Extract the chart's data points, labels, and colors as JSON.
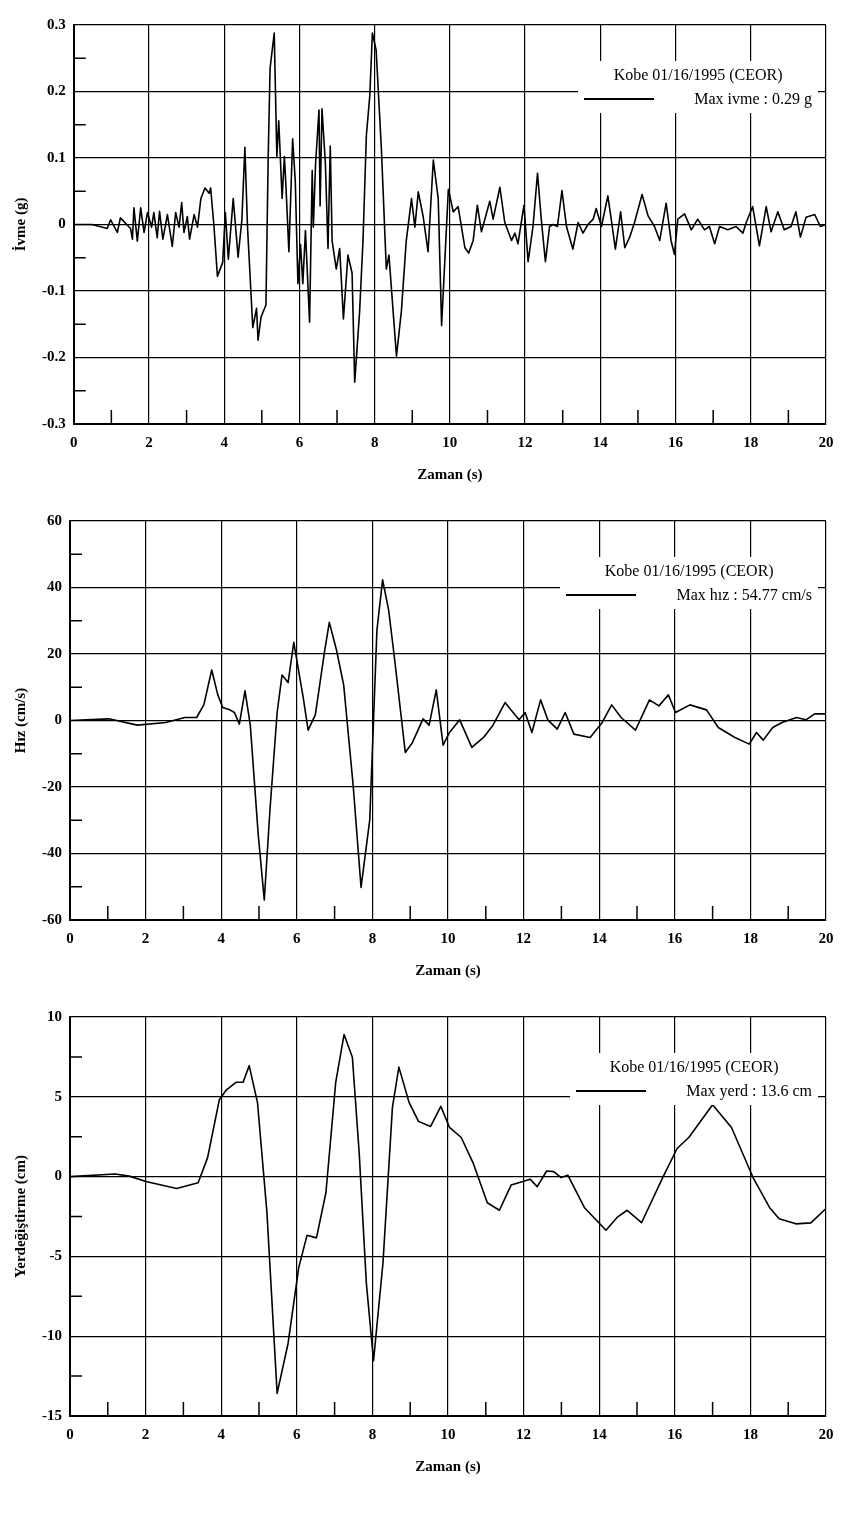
{
  "chart_data": [
    {
      "type": "line",
      "xlabel": "Zaman (s)",
      "ylabel": "İvme (g)",
      "legend_title": "Kobe 01/16/1995 (CEOR)",
      "legend": "top right",
      "grid": true,
      "xlim": [
        0,
        20
      ],
      "ylim": [
        -0.3,
        0.3
      ],
      "xticks": [
        0,
        {
          "value": 1,
          "label": null
        },
        2,
        {
          "value": 3,
          "label": null
        },
        4,
        {
          "value": 5,
          "label": null
        },
        6,
        {
          "value": 7,
          "label": null
        },
        8,
        {
          "value": 9,
          "label": null
        },
        10,
        {
          "value": 11,
          "label": null
        },
        12,
        {
          "value": 13,
          "label": null
        },
        14,
        {
          "value": 15,
          "label": null
        },
        16,
        {
          "value": 17,
          "label": null
        },
        18,
        {
          "value": 19,
          "label": null
        },
        20
      ],
      "yticks": [
        -0.3,
        {
          "value": -0.25,
          "label": null
        },
        -0.2,
        {
          "value": -0.15,
          "label": null
        },
        -0.1,
        {
          "value": -0.05,
          "label": null
        },
        0,
        {
          "value": 0.05,
          "label": null
        },
        0.1,
        {
          "value": 0.15,
          "label": null
        },
        0.2,
        {
          "value": 0.25,
          "label": null
        },
        0.3
      ],
      "x": [
        0,
        0.49,
        0.89,
        0.98,
        1.16,
        1.24,
        1.51,
        1.56,
        1.6,
        1.69,
        1.78,
        1.87,
        1.96,
        2.07,
        2.13,
        2.22,
        2.28,
        2.37,
        2.49,
        2.62,
        2.71,
        2.8,
        2.87,
        2.93,
        3.02,
        3.08,
        3.2,
        3.29,
        3.38,
        3.49,
        3.6,
        3.64,
        3.73,
        3.82,
        3.96,
        4.03,
        4.11,
        4.24,
        4.37,
        4.47,
        4.55,
        4.62,
        4.76,
        4.86,
        4.9,
        4.98,
        5.11,
        5.17,
        5.22,
        5.33,
        5.4,
        5.45,
        5.54,
        5.6,
        5.64,
        5.72,
        5.82,
        5.89,
        5.96,
        6.03,
        6.09,
        6.16,
        6.27,
        6.34,
        6.37,
        6.43,
        6.52,
        6.55,
        6.6,
        6.69,
        6.76,
        6.82,
        6.87,
        6.98,
        7.07,
        7.17,
        7.29,
        7.4,
        7.47,
        7.6,
        7.69,
        7.78,
        7.87,
        7.94,
        8.04,
        8.18,
        8.31,
        8.38,
        8.58,
        8.71,
        8.84,
        8.98,
        9.07,
        9.16,
        9.29,
        9.42,
        9.56,
        9.69,
        9.78,
        9.96,
        10.09,
        10.22,
        10.4,
        10.5,
        10.62,
        10.73,
        10.84,
        11.06,
        11.15,
        11.33,
        11.46,
        11.64,
        11.73,
        11.81,
        11.97,
        12.08,
        12.21,
        12.33,
        12.43,
        12.54,
        12.65,
        12.74,
        12.86,
        12.98,
        13.1,
        13.27,
        13.41,
        13.54,
        13.67,
        13.81,
        13.89,
        14.03,
        14.2,
        14.29,
        14.4,
        14.54,
        14.65,
        14.78,
        14.91,
        15.11,
        15.27,
        15.44,
        15.58,
        15.75,
        15.88,
        15.97,
        16.06,
        16.24,
        16.42,
        16.59,
        16.77,
        16.9,
        17.04,
        17.17,
        17.39,
        17.61,
        17.79,
        17.88,
        18.05,
        18.23,
        18.41,
        18.54,
        18.72,
        18.89,
        19.07,
        19.2,
        19.32,
        19.47,
        19.7,
        19.85,
        20
      ],
      "series": [
        {
          "name": "Max ivme : 0.29 g",
          "color": "#000000",
          "values": [
            0,
            0,
            -0.006,
            0.007,
            -0.012,
            0.01,
            -0.006,
            -0.022,
            0.025,
            -0.025,
            0.025,
            -0.012,
            0.018,
            -0.004,
            0.018,
            -0.02,
            0.02,
            -0.022,
            0.015,
            -0.033,
            0.018,
            -0.004,
            0.033,
            -0.012,
            0.012,
            -0.022,
            0.015,
            -0.004,
            0.039,
            0.055,
            0.047,
            0.055,
            -0.004,
            -0.078,
            -0.057,
            0.018,
            -0.052,
            0.039,
            -0.049,
            0.007,
            0.116,
            -0.004,
            -0.155,
            -0.126,
            -0.174,
            -0.139,
            -0.121,
            0.102,
            0.235,
            0.288,
            0.102,
            0.156,
            0.039,
            0.102,
            0.06,
            -0.041,
            0.129,
            0.065,
            -0.089,
            -0.03,
            -0.089,
            -0.009,
            -0.147,
            0.081,
            -0.004,
            0.092,
            0.172,
            0.028,
            0.174,
            0.092,
            -0.036,
            0.118,
            -0.025,
            -0.067,
            -0.036,
            -0.142,
            -0.046,
            -0.073,
            -0.237,
            -0.131,
            -0.025,
            0.134,
            0.193,
            0.288,
            0.262,
            0.113,
            -0.067,
            -0.046,
            -0.198,
            -0.131,
            -0.025,
            0.039,
            -0.004,
            0.049,
            0.012,
            -0.041,
            0.097,
            0.039,
            -0.152,
            0.053,
            0.019,
            0.027,
            -0.035,
            -0.043,
            -0.024,
            0.029,
            -0.011,
            0.035,
            0.008,
            0.056,
            0.003,
            -0.024,
            -0.013,
            -0.029,
            0.029,
            -0.056,
            -0.003,
            0.077,
            0.008,
            -0.056,
            -0.003,
            0,
            -0.003,
            0.051,
            -0.003,
            -0.037,
            0.003,
            -0.013,
            0,
            0.008,
            0.024,
            -0.003,
            0.043,
            0.008,
            -0.037,
            0.019,
            -0.035,
            -0.019,
            0.003,
            0.045,
            0.013,
            -0.003,
            -0.024,
            0.032,
            -0.024,
            -0.045,
            0.008,
            0.016,
            -0.008,
            0.008,
            -0.008,
            -0.003,
            -0.029,
            -0.003,
            -0.008,
            -0.003,
            -0.013,
            0.003,
            0.027,
            -0.032,
            0.027,
            -0.011,
            0.019,
            -0.008,
            -0.003,
            0.019,
            -0.019,
            0.011,
            0.015,
            -0.003,
            0
          ]
        }
      ]
    },
    {
      "type": "line",
      "xlabel": "Zaman (s)",
      "ylabel": "Hız (cm/s)",
      "legend_title": "Kobe 01/16/1995 (CEOR)",
      "legend": "top right",
      "grid": true,
      "xlim": [
        0,
        20
      ],
      "ylim": [
        -60,
        60
      ],
      "xticks": [
        0,
        {
          "value": 1,
          "label": null
        },
        2,
        {
          "value": 3,
          "label": null
        },
        4,
        {
          "value": 5,
          "label": null
        },
        6,
        {
          "value": 7,
          "label": null
        },
        8,
        {
          "value": 9,
          "label": null
        },
        10,
        {
          "value": 11,
          "label": null
        },
        12,
        {
          "value": 13,
          "label": null
        },
        14,
        {
          "value": 15,
          "label": null
        },
        16,
        {
          "value": 17,
          "label": null
        },
        18,
        {
          "value": 19,
          "label": null
        },
        20
      ],
      "yticks": [
        -60,
        {
          "value": -50,
          "label": null
        },
        -40,
        {
          "value": -30,
          "label": null
        },
        -20,
        {
          "value": -10,
          "label": null
        },
        0,
        {
          "value": 10,
          "label": null
        },
        20,
        {
          "value": 30,
          "label": null
        },
        40,
        {
          "value": 50,
          "label": null
        },
        60
      ],
      "x": [
        0,
        1.03,
        1.78,
        2.53,
        3.04,
        3.35,
        3.54,
        3.75,
        3.91,
        4.04,
        4.23,
        4.35,
        4.48,
        4.63,
        4.77,
        4.98,
        5.14,
        5.29,
        5.48,
        5.61,
        5.77,
        5.92,
        6.17,
        6.3,
        6.49,
        6.74,
        6.86,
        7.05,
        7.24,
        7.49,
        7.7,
        7.93,
        8.12,
        8.27,
        8.43,
        8.59,
        8.87,
        9.06,
        9.34,
        9.5,
        9.69,
        9.87,
        10.04,
        10.31,
        10.63,
        10.94,
        11.19,
        11.51,
        11.88,
        12.04,
        12.22,
        12.45,
        12.64,
        12.89,
        13.1,
        13.33,
        13.76,
        14.08,
        14.33,
        14.58,
        14.96,
        15.33,
        15.58,
        15.83,
        16.02,
        16.4,
        16.84,
        17.15,
        17.59,
        17.97,
        18.16,
        18.34,
        18.59,
        18.84,
        19.22,
        19.47,
        19.7,
        20
      ],
      "series": [
        {
          "name": "Max hız : 54.77 cm/s",
          "color": "#000000",
          "values": [
            0,
            0.5,
            -1.4,
            -0.6,
            0.9,
            0.9,
            4.7,
            15.2,
            7.7,
            3.9,
            3.2,
            2.4,
            -1.1,
            8.9,
            -1.4,
            -34.4,
            -54,
            -26.9,
            2.4,
            13.7,
            11.4,
            23.5,
            6.9,
            -2.9,
            1.7,
            21.2,
            29.5,
            21.2,
            10.7,
            -19.4,
            -50.2,
            -29.9,
            27.2,
            42.3,
            33.2,
            18.2,
            -9.6,
            -6.6,
            0.5,
            -1.4,
            9.2,
            -7.4,
            -3.6,
            0.2,
            -8.1,
            -5.1,
            -1.4,
            5.4,
            0.2,
            2.4,
            -3.6,
            6.2,
            0.2,
            -2.6,
            2.4,
            -4.1,
            -5.1,
            -0.6,
            4.7,
            0.9,
            -2.9,
            6.2,
            4.4,
            7.7,
            2.4,
            4.7,
            3.2,
            -2.1,
            -5.1,
            -7.1,
            -3.6,
            -5.9,
            -2.1,
            -0.6,
            0.9,
            0.2,
            2,
            2
          ]
        }
      ]
    },
    {
      "type": "line",
      "xlabel": "Zaman (s)",
      "ylabel": "Yerdeğiştirme (cm)",
      "legend_title": "Kobe 01/16/1995 (CEOR)",
      "legend": "top right",
      "grid": true,
      "xlim": [
        0,
        20
      ],
      "ylim": [
        -15,
        10
      ],
      "xticks": [
        0,
        {
          "value": 1,
          "label": null
        },
        2,
        {
          "value": 3,
          "label": null
        },
        4,
        {
          "value": 5,
          "label": null
        },
        6,
        {
          "value": 7,
          "label": null
        },
        8,
        {
          "value": 9,
          "label": null
        },
        10,
        {
          "value": 11,
          "label": null
        },
        12,
        {
          "value": 13,
          "label": null
        },
        14,
        {
          "value": 15,
          "label": null
        },
        16,
        {
          "value": 17,
          "label": null
        },
        18,
        {
          "value": 19,
          "label": null
        },
        20
      ],
      "yticks": [
        -15,
        {
          "value": -12.5,
          "label": null
        },
        -10,
        {
          "value": -7.5,
          "label": null
        },
        -5,
        {
          "value": -2.5,
          "label": null
        },
        0,
        {
          "value": 2.5,
          "label": null
        },
        5,
        {
          "value": 7.5,
          "label": null
        },
        10
      ],
      "x": [
        0,
        1.19,
        1.57,
        2.01,
        2.82,
        3.39,
        3.64,
        3.95,
        4.14,
        4.39,
        4.58,
        4.74,
        4.96,
        5.21,
        5.48,
        5.77,
        6.05,
        6.27,
        6.52,
        6.77,
        7.03,
        7.25,
        7.47,
        7.65,
        7.84,
        8.03,
        8.28,
        8.53,
        8.7,
        8.97,
        9.22,
        9.54,
        9.81,
        10.04,
        10.35,
        10.66,
        11.04,
        11.36,
        11.67,
        11.98,
        12.17,
        12.36,
        12.61,
        12.8,
        12.99,
        13.17,
        13.61,
        14.18,
        14.49,
        14.74,
        15.12,
        15.68,
        16.06,
        16.37,
        17,
        17.5,
        18.07,
        18.51,
        18.76,
        19.2,
        19.6,
        20
      ],
      "series": [
        {
          "name": "Max yerd : 13.6 cm",
          "color": "#000000",
          "values": [
            0,
            0.16,
            0.03,
            -0.31,
            -0.75,
            -0.38,
            1.19,
            4.81,
            5.44,
            5.91,
            5.91,
            6.95,
            4.65,
            -2.26,
            -13.58,
            -10.44,
            -5.72,
            -3.68,
            -3.84,
            -1.01,
            5.91,
            8.9,
            7.48,
            1.51,
            -6.67,
            -11.54,
            -5.4,
            4.34,
            6.86,
            4.65,
            3.46,
            3.14,
            4.4,
            3.08,
            2.45,
            0.88,
            -1.64,
            -2.11,
            -0.53,
            -0.31,
            -0.16,
            -0.63,
            0.35,
            0.31,
            -0.06,
            0.09,
            -1.95,
            -3.36,
            -2.52,
            -2.11,
            -2.89,
            -0.06,
            1.76,
            2.45,
            4.5,
            3.08,
            -0.06,
            -1.95,
            -2.64,
            -2.96,
            -2.9,
            -2
          ]
        }
      ]
    }
  ]
}
